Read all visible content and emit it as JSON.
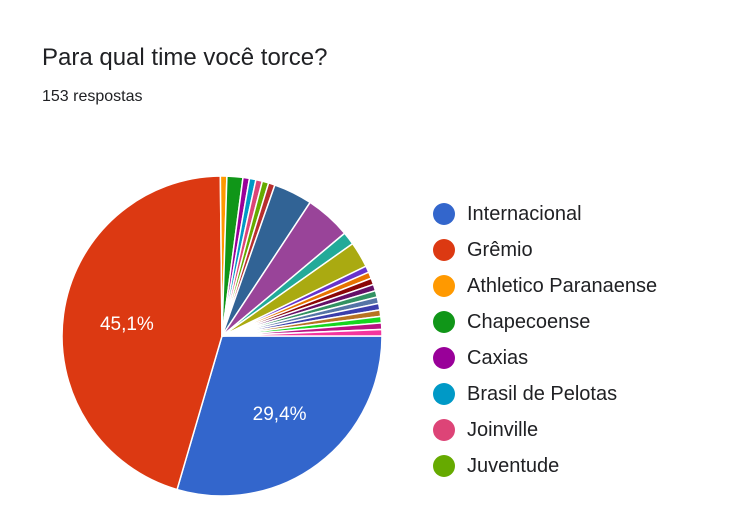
{
  "header": {
    "title": "Para qual time você torce?",
    "subtitle": "153 respostas"
  },
  "chart_data": {
    "type": "pie",
    "title": "Para qual time você torce?",
    "total_responses": 153,
    "legend_position": "right",
    "slices": [
      {
        "label": "Internacional",
        "value": 29.4,
        "color": "#3366cc",
        "data_label": "29,4%"
      },
      {
        "label": "Grêmio",
        "value": 45.1,
        "color": "#dc3912",
        "data_label": "45,1%"
      },
      {
        "label": "Athletico Paranaense",
        "value": 0.65,
        "color": "#ff9900"
      },
      {
        "label": "Chapecoense",
        "value": 1.6,
        "color": "#109618"
      },
      {
        "label": "",
        "value": 0.65,
        "color": "#990099"
      },
      {
        "label": "",
        "value": 0.65,
        "color": "#0099c6"
      },
      {
        "label": "",
        "value": 0.65,
        "color": "#dd4477"
      },
      {
        "label": "",
        "value": 0.65,
        "color": "#66aa00"
      },
      {
        "label": "",
        "value": 0.65,
        "color": "#b82e2e"
      },
      {
        "label": "",
        "value": 3.9,
        "color": "#316395"
      },
      {
        "label": "",
        "value": 4.6,
        "color": "#994499"
      },
      {
        "label": "",
        "value": 1.3,
        "color": "#22aa99"
      },
      {
        "label": "",
        "value": 2.6,
        "color": "#aaaa11"
      },
      {
        "label": "",
        "value": 0.65,
        "color": "#6633cc"
      },
      {
        "label": "",
        "value": 0.65,
        "color": "#e67300"
      },
      {
        "label": "",
        "value": 0.65,
        "color": "#8b0707"
      },
      {
        "label": "",
        "value": 0.65,
        "color": "#651067"
      },
      {
        "label": "",
        "value": 0.65,
        "color": "#329262"
      },
      {
        "label": "",
        "value": 0.65,
        "color": "#5574a6"
      },
      {
        "label": "",
        "value": 0.65,
        "color": "#3b3eac"
      },
      {
        "label": "",
        "value": 0.65,
        "color": "#b77322"
      },
      {
        "label": "",
        "value": 0.65,
        "color": "#16d620"
      },
      {
        "label": "",
        "value": 0.65,
        "color": "#b91383"
      },
      {
        "label": "",
        "value": 0.65,
        "color": "#f4359e"
      }
    ],
    "legend": [
      {
        "label": "Internacional",
        "color": "#3366cc"
      },
      {
        "label": "Grêmio",
        "color": "#dc3912"
      },
      {
        "label": "Athletico Paranaense",
        "color": "#ff9900"
      },
      {
        "label": "Chapecoense",
        "color": "#109618"
      },
      {
        "label": "Caxias",
        "color": "#990099"
      },
      {
        "label": "Brasil de Pelotas",
        "color": "#0099c6"
      },
      {
        "label": "Joinville",
        "color": "#dd4477"
      },
      {
        "label": "Juventude",
        "color": "#66aa00"
      }
    ]
  }
}
